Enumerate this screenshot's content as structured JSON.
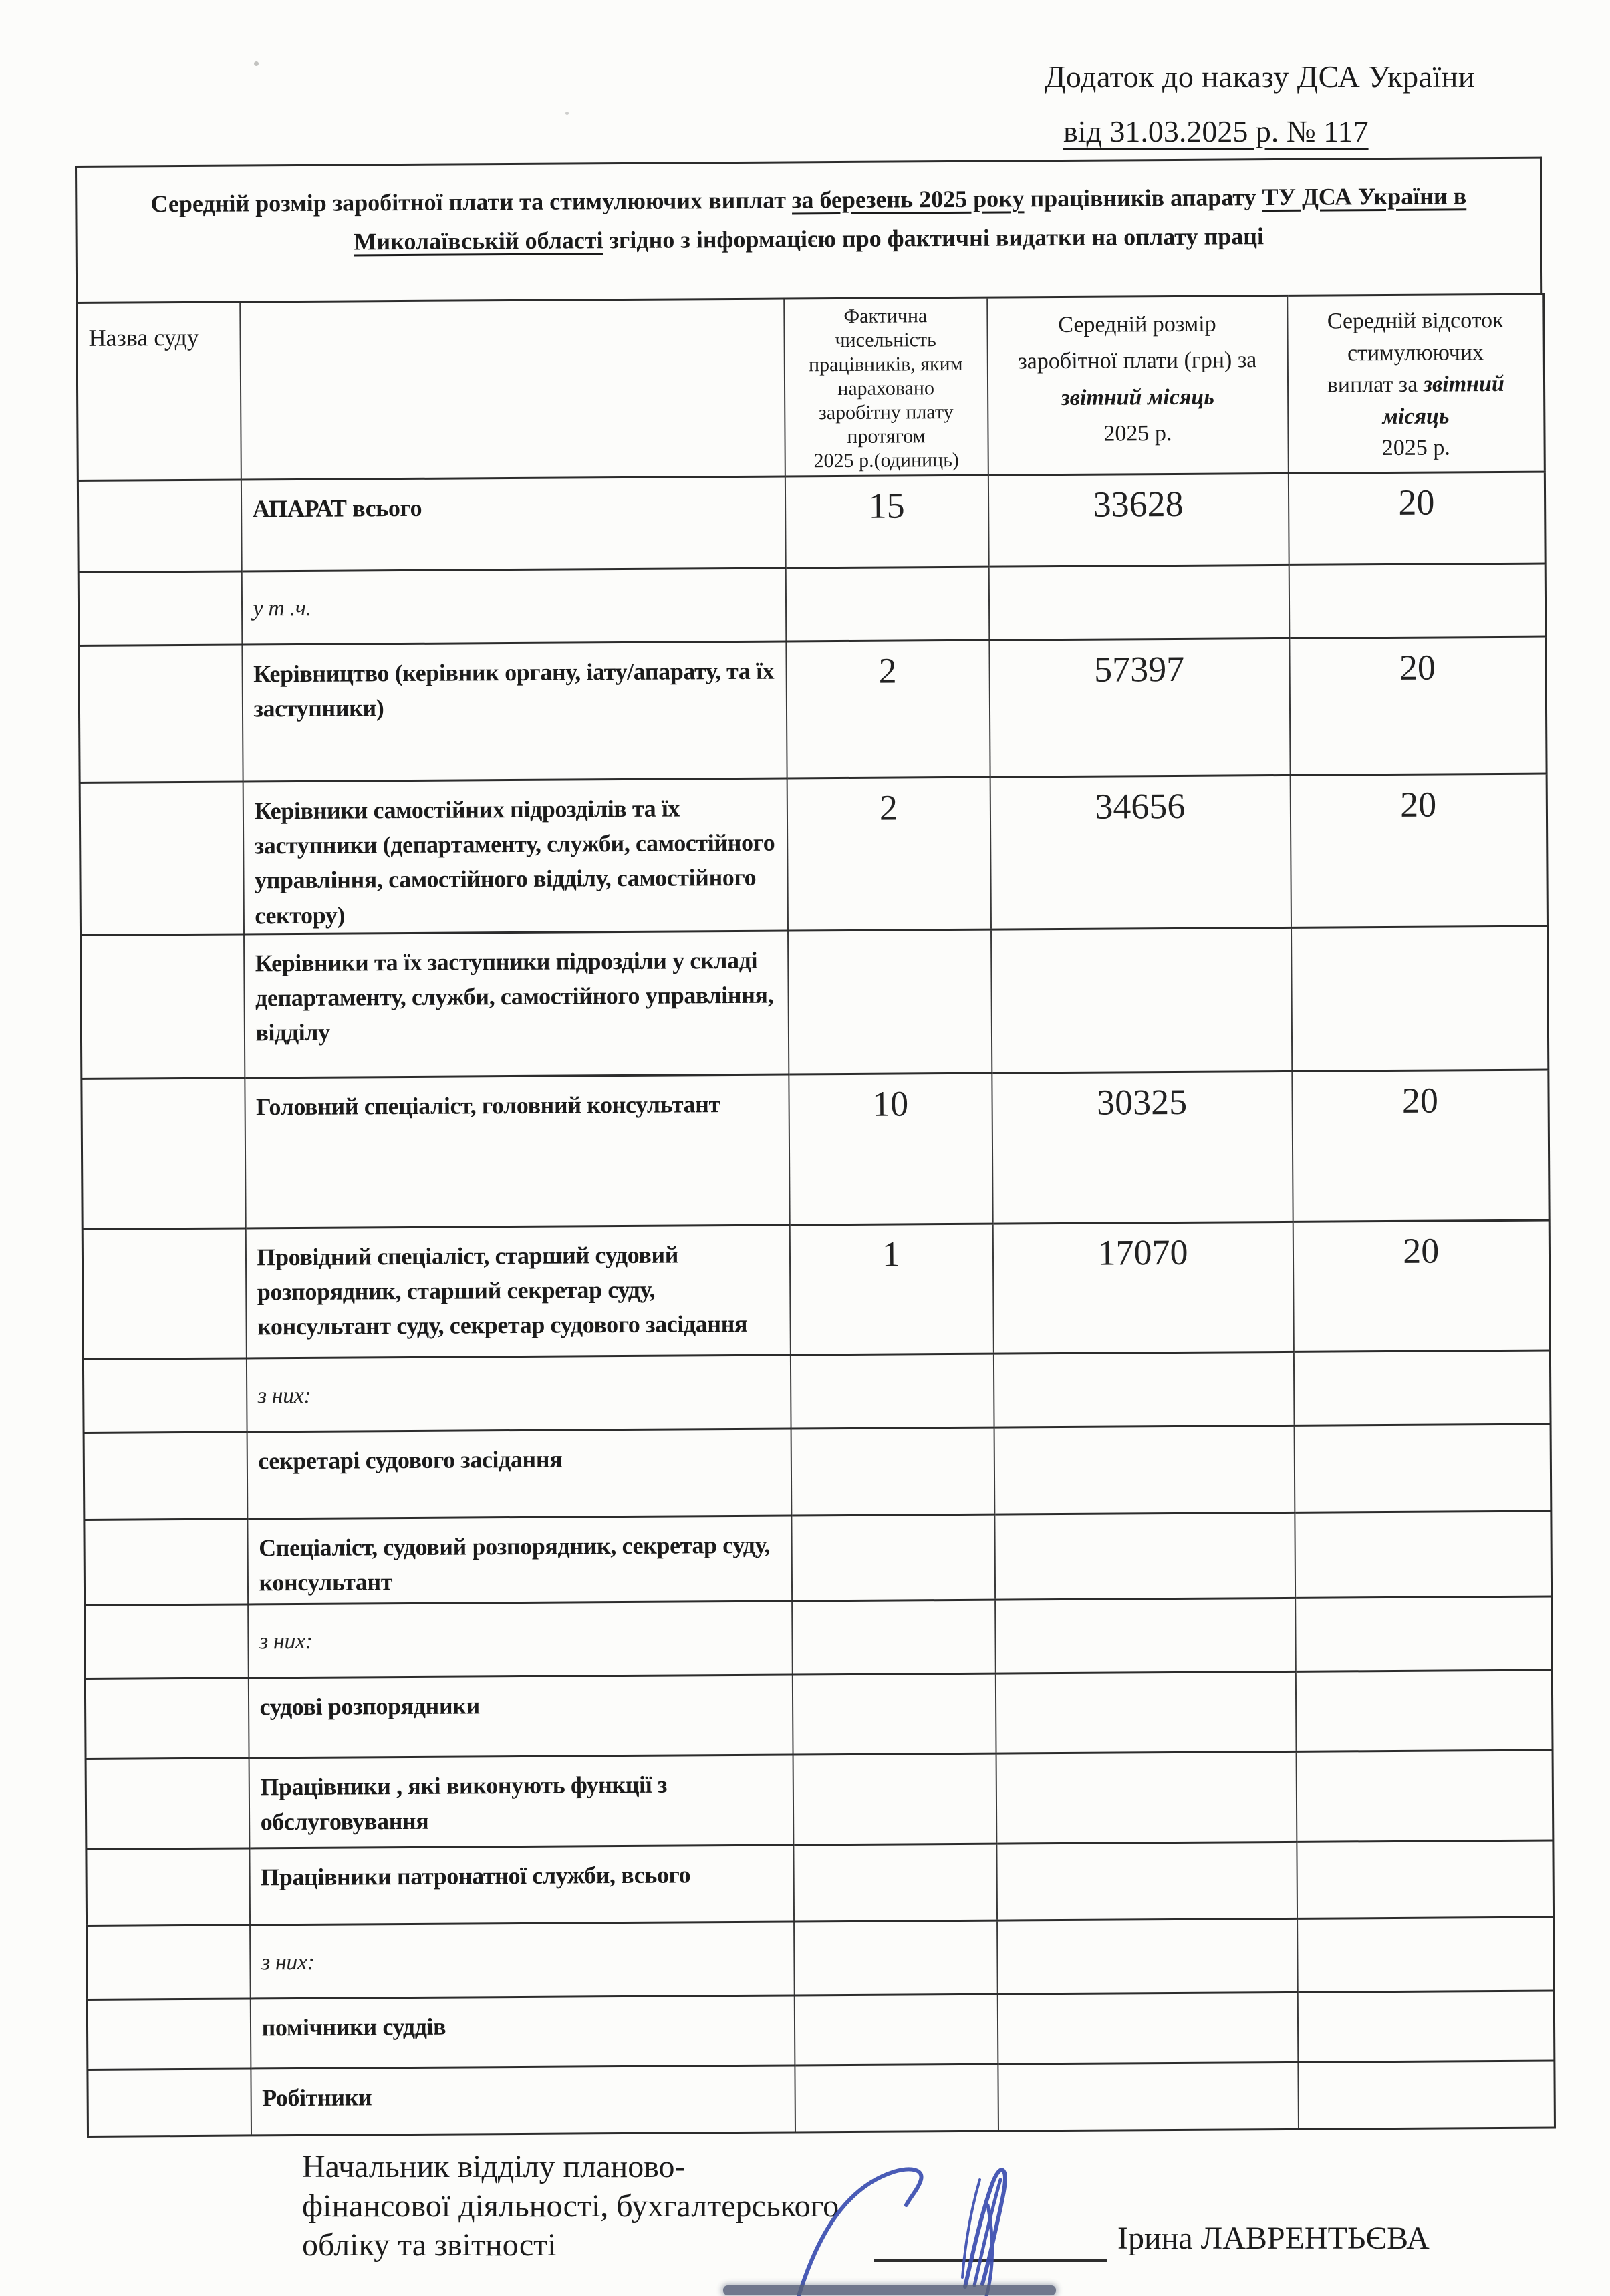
{
  "header": {
    "appendix_line1": "Додаток до наказу ДСА України",
    "appendix_line2": "від 31.03.2025 р. № 117"
  },
  "title": {
    "segments": [
      {
        "t": "Середній розмір заробітної плати та стимулюючих виплат "
      },
      {
        "t": "за березень  2025 року",
        "u": true
      },
      {
        "t": "  працівників апарату "
      },
      {
        "t": "ТУ ДСА України в",
        "u": true
      },
      {
        "br": true
      },
      {
        "t": "Миколаївській області",
        "u": true
      },
      {
        "t": " згідно з інформацією про фактичні видатки на оплату праці"
      }
    ]
  },
  "table": {
    "columns": {
      "court": "Назва суду",
      "count_segments": [
        {
          "t": "Фактична"
        },
        {
          "br": true
        },
        {
          "t": "чисельність"
        },
        {
          "br": true
        },
        {
          "t": "працівників, яким"
        },
        {
          "br": true
        },
        {
          "t": "нараховано"
        },
        {
          "br": true
        },
        {
          "t": "заробітну плату"
        },
        {
          "br": true
        },
        {
          "t": "протягом"
        },
        {
          "br": true
        },
        {
          "t": "2025 р.(одиниць)"
        }
      ],
      "salary_segments": [
        {
          "t": "Середній розмір"
        },
        {
          "br": true
        },
        {
          "t": "заробітної плати (грн) за"
        },
        {
          "br": true
        },
        {
          "t": "звітний місяць",
          "bi": true
        },
        {
          "br": true
        },
        {
          "t": "2025 р."
        }
      ],
      "percent_segments": [
        {
          "t": "Середній відсоток"
        },
        {
          "br": true
        },
        {
          "t": "стимулюючих"
        },
        {
          "br": true
        },
        {
          "t": "виплат за "
        },
        {
          "t": "звітний",
          "bi": true
        },
        {
          "br": true
        },
        {
          "t": "місяць",
          "bi": true
        },
        {
          "br": true
        },
        {
          "t": "2025 р."
        }
      ]
    },
    "rows": [
      {
        "label": "АПАРАТ всього",
        "count": "15",
        "salary": "33628",
        "percent": "20"
      },
      {
        "label": "у т .ч.",
        "note": true,
        "count": "",
        "salary": "",
        "percent": ""
      },
      {
        "label": "Керівництво (керівник органу, іату/апарату, та їх заступники)",
        "count": "2",
        "salary": "57397",
        "percent": "20"
      },
      {
        "label": "Керівники самостійних підрозділів та їх заступники (департаменту, служби, самостійного управління, самостійного відділу, самостійного сектору)",
        "count": "2",
        "salary": "34656",
        "percent": "20"
      },
      {
        "label": "Керівники  та їх заступники підрозділи у складі департаменту, служби, самостійного управління, відділу",
        "count": "",
        "salary": "",
        "percent": ""
      },
      {
        "label": "Головний спеціаліст, головний консультант",
        "count": "10",
        "salary": "30325",
        "percent": "20"
      },
      {
        "label": "Провідний спеціаліст, старший судовий розпорядник, старший секретар суду, консультант суду, секретар судового засідання",
        "count": "1",
        "salary": "17070",
        "percent": "20"
      },
      {
        "label": "з них:",
        "note": true,
        "count": "",
        "salary": "",
        "percent": ""
      },
      {
        "label": "секретарі судового засідання",
        "count": "",
        "salary": "",
        "percent": ""
      },
      {
        "label": "Спеціаліст, судовий розпорядник, секретар суду, консультант",
        "count": "",
        "salary": "",
        "percent": ""
      },
      {
        "label": "з них:",
        "note": true,
        "count": "",
        "salary": "",
        "percent": ""
      },
      {
        "label": "судові розпорядники",
        "count": "",
        "salary": "",
        "percent": ""
      },
      {
        "label": "Працівники , які виконують функції з обслуговування",
        "count": "",
        "salary": "",
        "percent": ""
      },
      {
        "label": "Працівники патронатної служби, всього",
        "count": "",
        "salary": "",
        "percent": ""
      },
      {
        "label": "з них:",
        "note": true,
        "count": "",
        "salary": "",
        "percent": ""
      },
      {
        "label": "помічники суддів",
        "count": "",
        "salary": "",
        "percent": ""
      },
      {
        "label": "Робітники",
        "count": "",
        "salary": "",
        "percent": ""
      }
    ]
  },
  "footer": {
    "position": "Начальник відділу планово-\nфінансової діяльності, бухгалтерського\nобліку та звітності",
    "name": "Ірина ЛАВРЕНТЬЄВА"
  },
  "colors": {
    "ink": "#1b1b1b",
    "border": "#2c2c2c",
    "signature_blue": "#3a4db0",
    "paper": "#fcfcfa"
  }
}
